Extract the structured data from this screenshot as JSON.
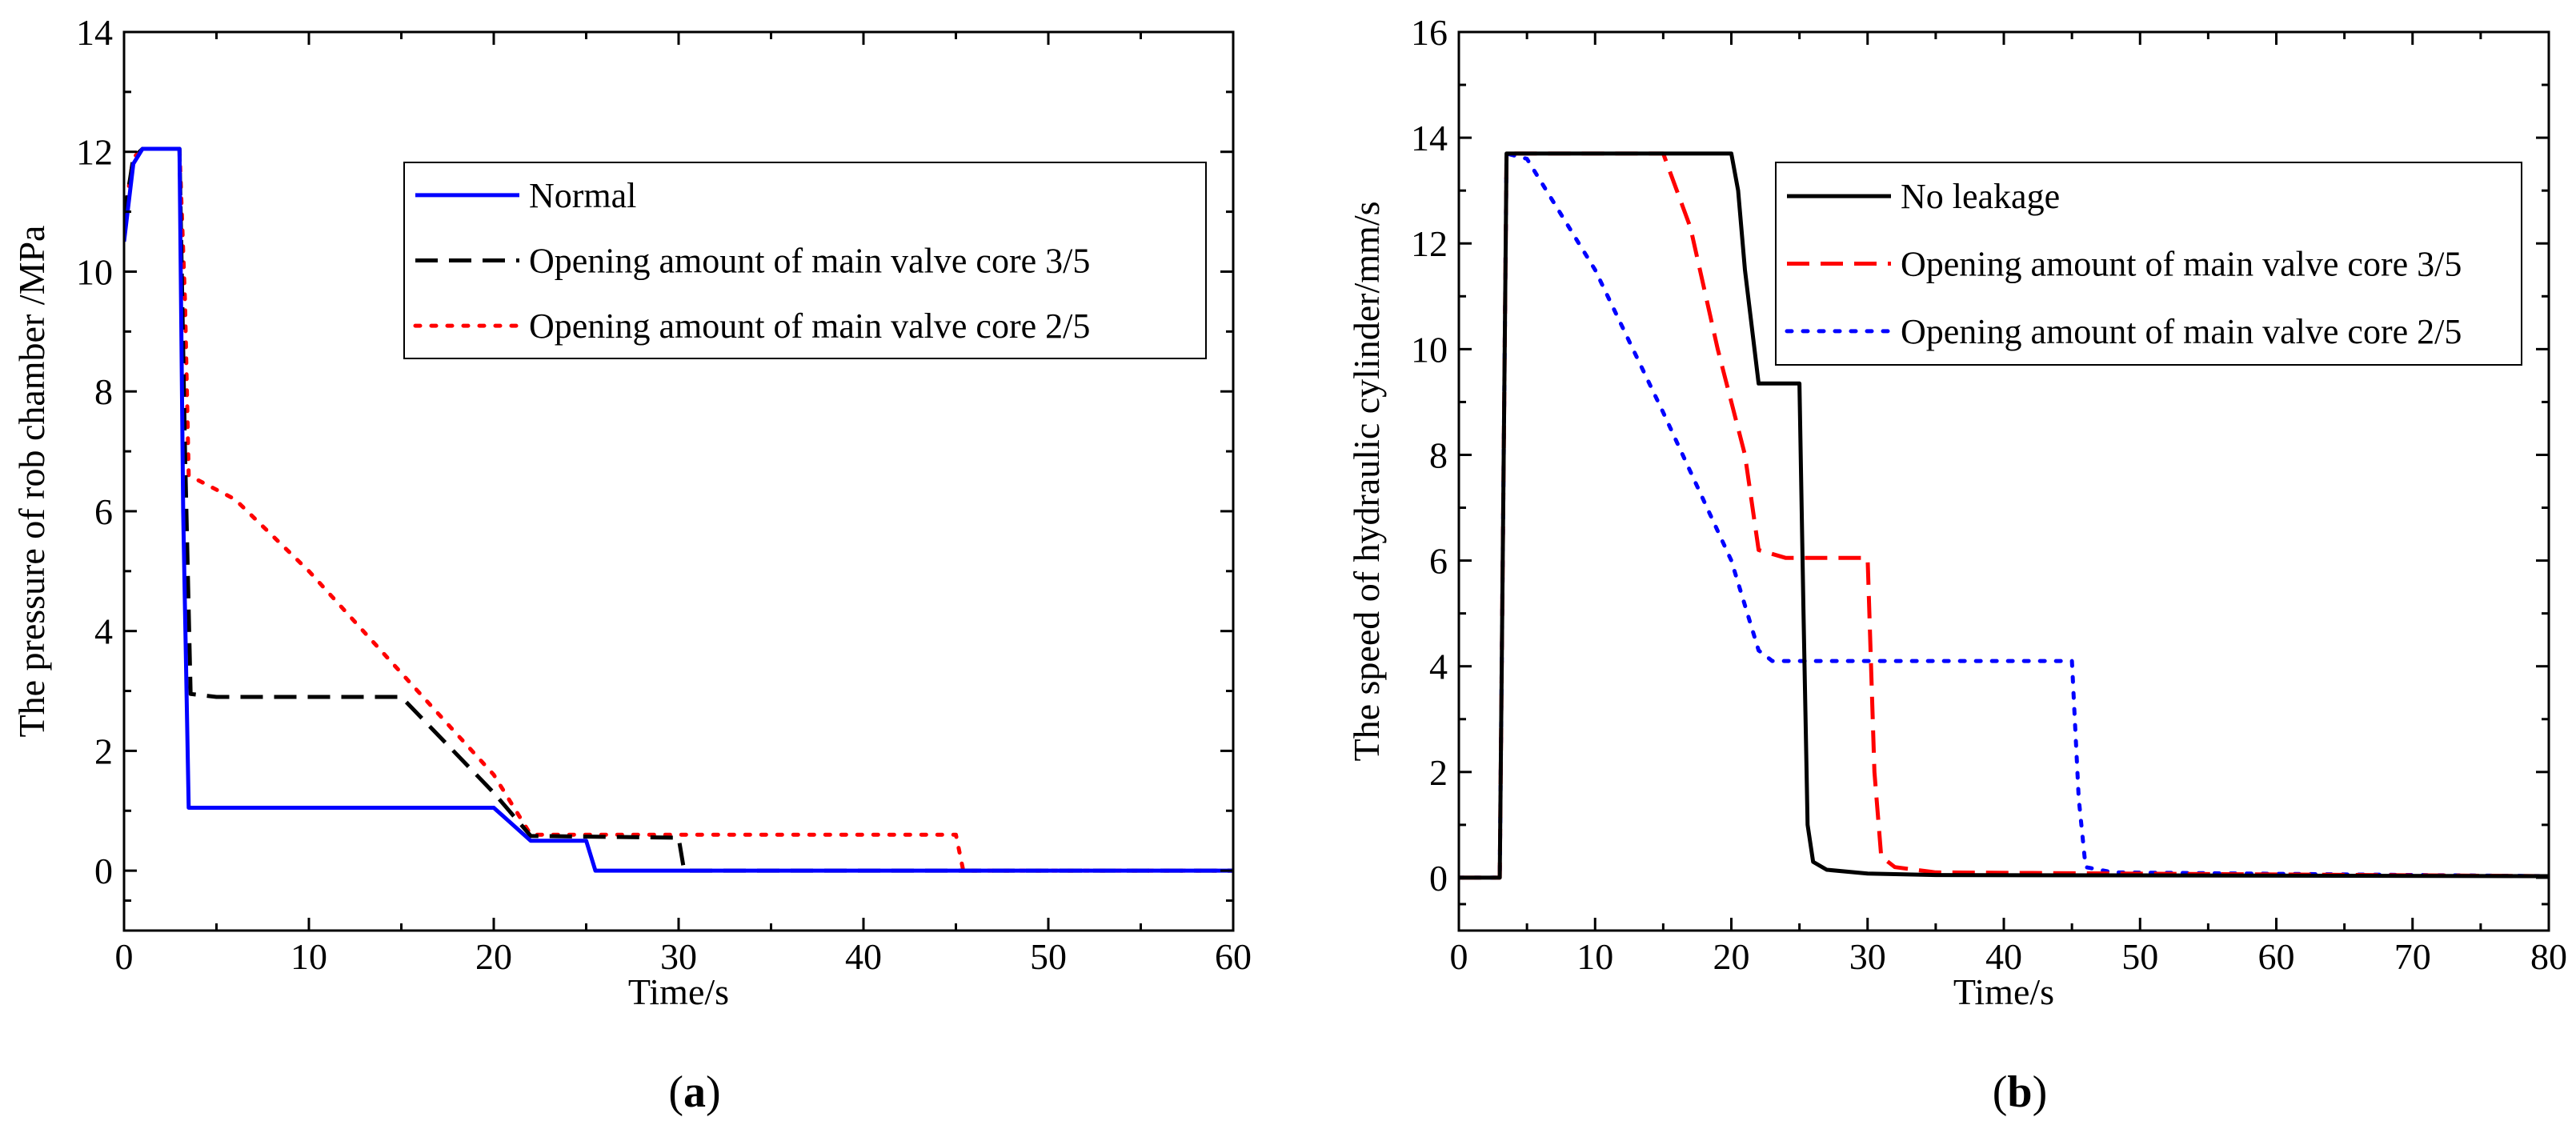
{
  "chart_data": [
    {
      "type": "line",
      "panel_label": "a",
      "title": "",
      "xlabel": "Time/s",
      "ylabel": "The pressure of rob chamber /MPa",
      "xlim": [
        0,
        60
      ],
      "ylim": [
        -1,
        14
      ],
      "xticks": [
        0,
        10,
        20,
        30,
        40,
        50,
        60
      ],
      "yticks": [
        0,
        2,
        4,
        6,
        8,
        10,
        12,
        14
      ],
      "legend_position": "top-right",
      "series": [
        {
          "name": "Normal",
          "color": "#0000ff",
          "style": "solid",
          "x": [
            0,
            0.5,
            1,
            3,
            3.2,
            3.5,
            20,
            22,
            25,
            25.5,
            60
          ],
          "y": [
            10.5,
            11.8,
            12.05,
            12.05,
            6,
            1.05,
            1.05,
            0.5,
            0.5,
            0,
            0
          ]
        },
        {
          "name": "Opening amount of main valve core 3/5",
          "color": "#000000",
          "style": "dash",
          "x": [
            0,
            0.5,
            1,
            3,
            3.3,
            3.6,
            5,
            15,
            20,
            22,
            30,
            30.3,
            60
          ],
          "y": [
            10.9,
            11.9,
            12.05,
            12.05,
            7,
            2.95,
            2.9,
            2.9,
            1.3,
            0.58,
            0.55,
            0,
            0
          ]
        },
        {
          "name": "Opening amount of main valve core 2/5",
          "color": "#ff0000",
          "style": "dot",
          "x": [
            0,
            0.5,
            1,
            3,
            3.3,
            3.5,
            6,
            10,
            15,
            20,
            22,
            45,
            45.4,
            60
          ],
          "y": [
            10.9,
            11.9,
            12.05,
            12.05,
            9.5,
            6.6,
            6.2,
            5.0,
            3.3,
            1.6,
            0.6,
            0.6,
            0,
            0
          ]
        }
      ]
    },
    {
      "type": "line",
      "panel_label": "b",
      "title": "",
      "xlabel": "Time/s",
      "ylabel": "The speed of  hydraulic cylinder/mm/s",
      "xlim": [
        0,
        80
      ],
      "ylim": [
        -1,
        16
      ],
      "xticks": [
        0,
        10,
        20,
        30,
        40,
        50,
        60,
        70,
        80
      ],
      "yticks": [
        0,
        2,
        4,
        6,
        8,
        10,
        12,
        14,
        16
      ],
      "legend_position": "top-right",
      "series": [
        {
          "name": "No leakage",
          "color": "#000000",
          "style": "solid",
          "x": [
            0,
            3,
            3.5,
            20,
            20.5,
            21,
            22,
            25,
            25.3,
            25.6,
            26,
            27,
            30,
            35,
            80
          ],
          "y": [
            0,
            0,
            13.7,
            13.7,
            13,
            11.5,
            9.35,
            9.35,
            5,
            1,
            0.3,
            0.15,
            0.08,
            0.05,
            0.03
          ]
        },
        {
          "name": "Opening amount of main valve core 3/5",
          "color": "#ff0000",
          "style": "dash",
          "x": [
            0,
            3,
            3.5,
            15,
            17,
            19,
            21,
            22,
            24,
            30,
            30.5,
            31,
            32,
            35,
            80
          ],
          "y": [
            0,
            0,
            13.7,
            13.7,
            12.3,
            10,
            8,
            6.2,
            6.05,
            6.05,
            2,
            0.4,
            0.2,
            0.1,
            0.03
          ]
        },
        {
          "name": "Opening amount of main valve core 2/5",
          "color": "#0000ff",
          "style": "dot",
          "x": [
            0,
            3,
            3.5,
            5,
            10,
            15,
            20,
            22,
            23,
            45,
            45.5,
            46,
            48,
            80
          ],
          "y": [
            0,
            0,
            13.7,
            13.6,
            11.5,
            8.8,
            6,
            4.3,
            4.1,
            4.1,
            1.5,
            0.2,
            0.1,
            0.03
          ]
        }
      ]
    }
  ]
}
